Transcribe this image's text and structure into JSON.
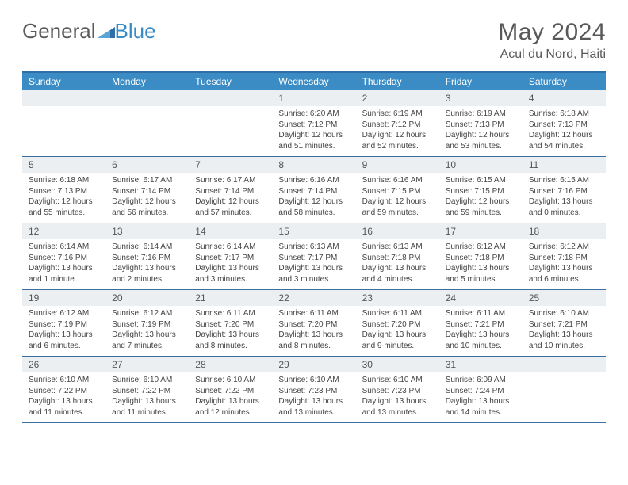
{
  "logo": {
    "text1": "General",
    "text2": "Blue"
  },
  "title": "May 2024",
  "location": "Acul du Nord, Haiti",
  "colors": {
    "header_bg": "#3b8bc4",
    "header_text": "#ffffff",
    "daynum_bg": "#eceff1",
    "border": "#3b6fa0",
    "text": "#595959"
  },
  "dayNames": [
    "Sunday",
    "Monday",
    "Tuesday",
    "Wednesday",
    "Thursday",
    "Friday",
    "Saturday"
  ],
  "weeks": [
    [
      {
        "n": "",
        "sr": "",
        "ss": "",
        "d1": "",
        "d2": ""
      },
      {
        "n": "",
        "sr": "",
        "ss": "",
        "d1": "",
        "d2": ""
      },
      {
        "n": "",
        "sr": "",
        "ss": "",
        "d1": "",
        "d2": ""
      },
      {
        "n": "1",
        "sr": "Sunrise: 6:20 AM",
        "ss": "Sunset: 7:12 PM",
        "d1": "Daylight: 12 hours",
        "d2": "and 51 minutes."
      },
      {
        "n": "2",
        "sr": "Sunrise: 6:19 AM",
        "ss": "Sunset: 7:12 PM",
        "d1": "Daylight: 12 hours",
        "d2": "and 52 minutes."
      },
      {
        "n": "3",
        "sr": "Sunrise: 6:19 AM",
        "ss": "Sunset: 7:13 PM",
        "d1": "Daylight: 12 hours",
        "d2": "and 53 minutes."
      },
      {
        "n": "4",
        "sr": "Sunrise: 6:18 AM",
        "ss": "Sunset: 7:13 PM",
        "d1": "Daylight: 12 hours",
        "d2": "and 54 minutes."
      }
    ],
    [
      {
        "n": "5",
        "sr": "Sunrise: 6:18 AM",
        "ss": "Sunset: 7:13 PM",
        "d1": "Daylight: 12 hours",
        "d2": "and 55 minutes."
      },
      {
        "n": "6",
        "sr": "Sunrise: 6:17 AM",
        "ss": "Sunset: 7:14 PM",
        "d1": "Daylight: 12 hours",
        "d2": "and 56 minutes."
      },
      {
        "n": "7",
        "sr": "Sunrise: 6:17 AM",
        "ss": "Sunset: 7:14 PM",
        "d1": "Daylight: 12 hours",
        "d2": "and 57 minutes."
      },
      {
        "n": "8",
        "sr": "Sunrise: 6:16 AM",
        "ss": "Sunset: 7:14 PM",
        "d1": "Daylight: 12 hours",
        "d2": "and 58 minutes."
      },
      {
        "n": "9",
        "sr": "Sunrise: 6:16 AM",
        "ss": "Sunset: 7:15 PM",
        "d1": "Daylight: 12 hours",
        "d2": "and 59 minutes."
      },
      {
        "n": "10",
        "sr": "Sunrise: 6:15 AM",
        "ss": "Sunset: 7:15 PM",
        "d1": "Daylight: 12 hours",
        "d2": "and 59 minutes."
      },
      {
        "n": "11",
        "sr": "Sunrise: 6:15 AM",
        "ss": "Sunset: 7:16 PM",
        "d1": "Daylight: 13 hours",
        "d2": "and 0 minutes."
      }
    ],
    [
      {
        "n": "12",
        "sr": "Sunrise: 6:14 AM",
        "ss": "Sunset: 7:16 PM",
        "d1": "Daylight: 13 hours",
        "d2": "and 1 minute."
      },
      {
        "n": "13",
        "sr": "Sunrise: 6:14 AM",
        "ss": "Sunset: 7:16 PM",
        "d1": "Daylight: 13 hours",
        "d2": "and 2 minutes."
      },
      {
        "n": "14",
        "sr": "Sunrise: 6:14 AM",
        "ss": "Sunset: 7:17 PM",
        "d1": "Daylight: 13 hours",
        "d2": "and 3 minutes."
      },
      {
        "n": "15",
        "sr": "Sunrise: 6:13 AM",
        "ss": "Sunset: 7:17 PM",
        "d1": "Daylight: 13 hours",
        "d2": "and 3 minutes."
      },
      {
        "n": "16",
        "sr": "Sunrise: 6:13 AM",
        "ss": "Sunset: 7:18 PM",
        "d1": "Daylight: 13 hours",
        "d2": "and 4 minutes."
      },
      {
        "n": "17",
        "sr": "Sunrise: 6:12 AM",
        "ss": "Sunset: 7:18 PM",
        "d1": "Daylight: 13 hours",
        "d2": "and 5 minutes."
      },
      {
        "n": "18",
        "sr": "Sunrise: 6:12 AM",
        "ss": "Sunset: 7:18 PM",
        "d1": "Daylight: 13 hours",
        "d2": "and 6 minutes."
      }
    ],
    [
      {
        "n": "19",
        "sr": "Sunrise: 6:12 AM",
        "ss": "Sunset: 7:19 PM",
        "d1": "Daylight: 13 hours",
        "d2": "and 6 minutes."
      },
      {
        "n": "20",
        "sr": "Sunrise: 6:12 AM",
        "ss": "Sunset: 7:19 PM",
        "d1": "Daylight: 13 hours",
        "d2": "and 7 minutes."
      },
      {
        "n": "21",
        "sr": "Sunrise: 6:11 AM",
        "ss": "Sunset: 7:20 PM",
        "d1": "Daylight: 13 hours",
        "d2": "and 8 minutes."
      },
      {
        "n": "22",
        "sr": "Sunrise: 6:11 AM",
        "ss": "Sunset: 7:20 PM",
        "d1": "Daylight: 13 hours",
        "d2": "and 8 minutes."
      },
      {
        "n": "23",
        "sr": "Sunrise: 6:11 AM",
        "ss": "Sunset: 7:20 PM",
        "d1": "Daylight: 13 hours",
        "d2": "and 9 minutes."
      },
      {
        "n": "24",
        "sr": "Sunrise: 6:11 AM",
        "ss": "Sunset: 7:21 PM",
        "d1": "Daylight: 13 hours",
        "d2": "and 10 minutes."
      },
      {
        "n": "25",
        "sr": "Sunrise: 6:10 AM",
        "ss": "Sunset: 7:21 PM",
        "d1": "Daylight: 13 hours",
        "d2": "and 10 minutes."
      }
    ],
    [
      {
        "n": "26",
        "sr": "Sunrise: 6:10 AM",
        "ss": "Sunset: 7:22 PM",
        "d1": "Daylight: 13 hours",
        "d2": "and 11 minutes."
      },
      {
        "n": "27",
        "sr": "Sunrise: 6:10 AM",
        "ss": "Sunset: 7:22 PM",
        "d1": "Daylight: 13 hours",
        "d2": "and 11 minutes."
      },
      {
        "n": "28",
        "sr": "Sunrise: 6:10 AM",
        "ss": "Sunset: 7:22 PM",
        "d1": "Daylight: 13 hours",
        "d2": "and 12 minutes."
      },
      {
        "n": "29",
        "sr": "Sunrise: 6:10 AM",
        "ss": "Sunset: 7:23 PM",
        "d1": "Daylight: 13 hours",
        "d2": "and 13 minutes."
      },
      {
        "n": "30",
        "sr": "Sunrise: 6:10 AM",
        "ss": "Sunset: 7:23 PM",
        "d1": "Daylight: 13 hours",
        "d2": "and 13 minutes."
      },
      {
        "n": "31",
        "sr": "Sunrise: 6:09 AM",
        "ss": "Sunset: 7:24 PM",
        "d1": "Daylight: 13 hours",
        "d2": "and 14 minutes."
      },
      {
        "n": "",
        "sr": "",
        "ss": "",
        "d1": "",
        "d2": ""
      }
    ]
  ]
}
